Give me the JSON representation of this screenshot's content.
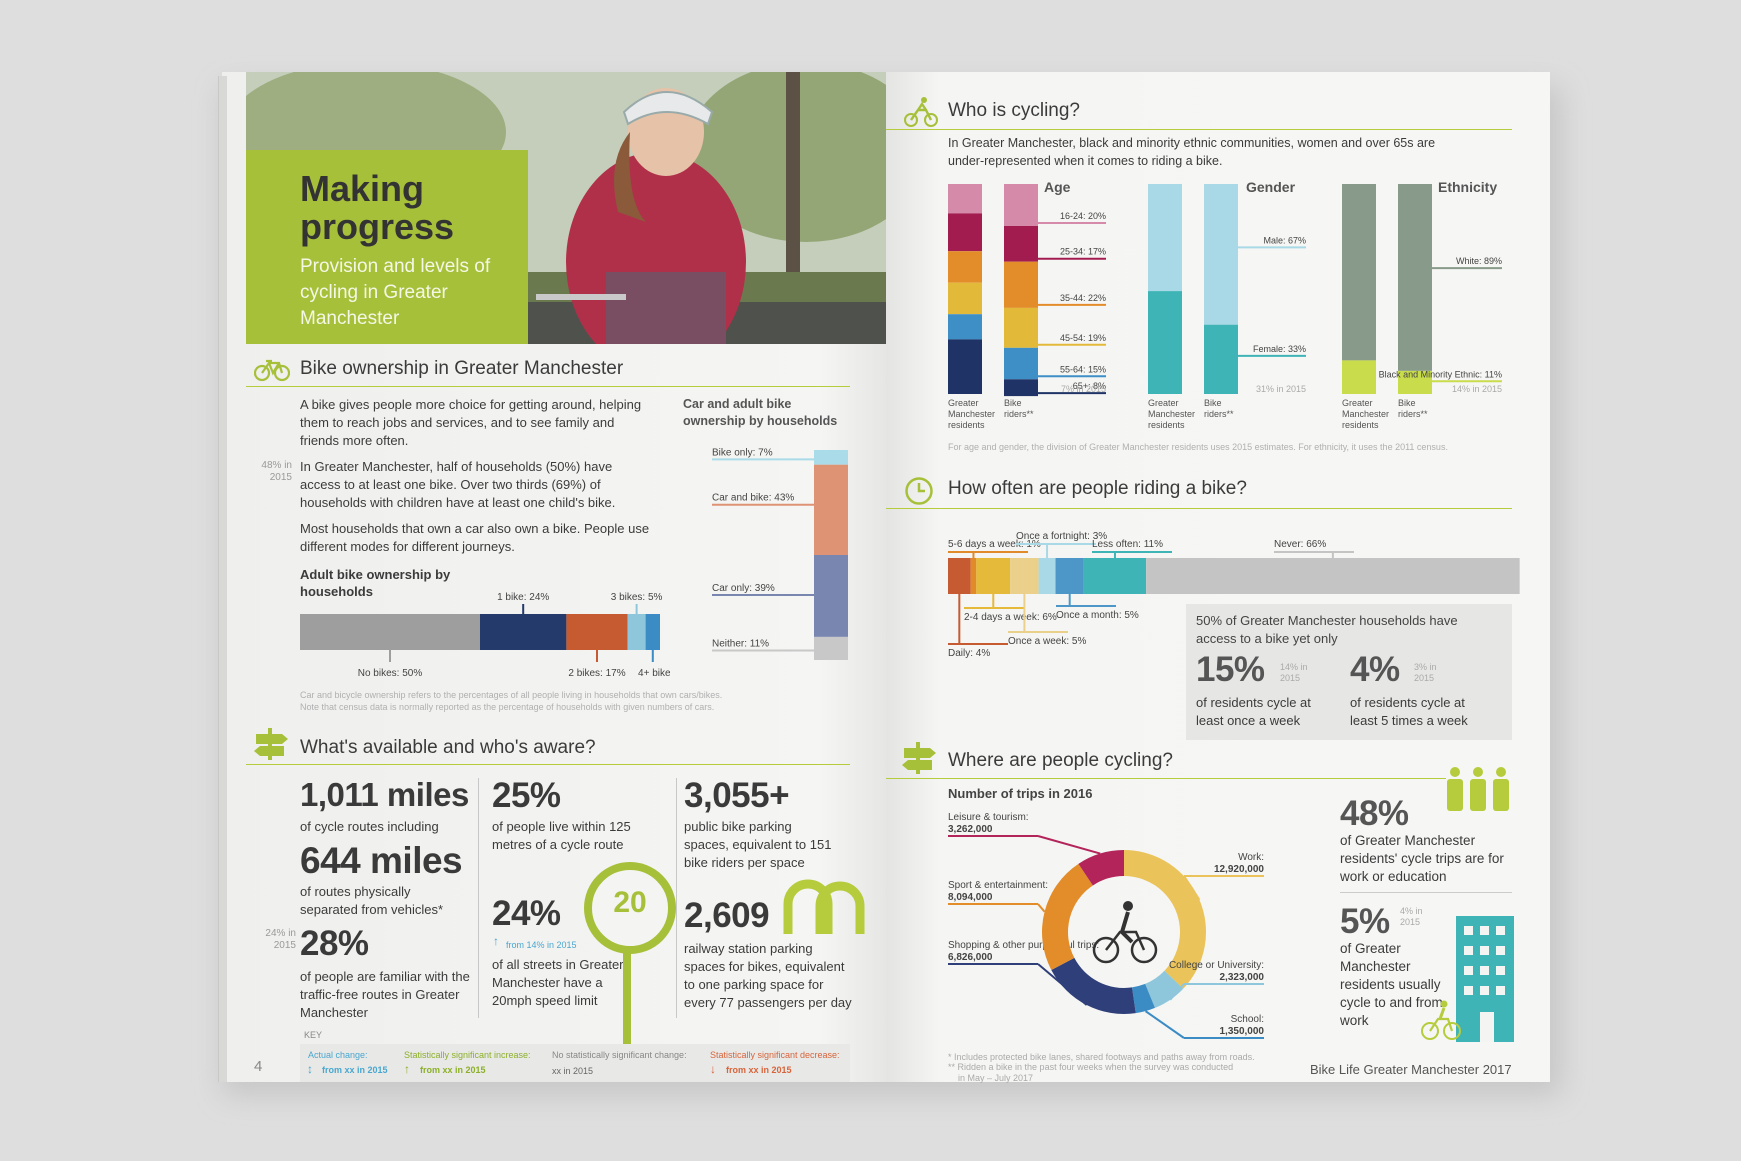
{
  "left": {
    "hero": {
      "title": "Making progress",
      "subtitle": "Provision and levels of cycling in Greater Manchester"
    },
    "ownership": {
      "heading": "Bike ownership in Greater Manchester",
      "p1": "A bike gives people more choice for getting around, helping them to reach jobs and services, and to see family and friends more often.",
      "p2_note": "48% in 2015",
      "p2": "In Greater Manchester, half of households (50%) have access to at least one bike. Over two thirds (69%) of households with children have at least one child's bike.",
      "p3": "Most households that own a car also own a bike. People use different modes for different journeys.",
      "adult_title": "Adult bike ownership by households",
      "car_title": "Car and adult bike ownership by households",
      "footnote1": "Car and bicycle ownership refers to the percentages of all people living in households that own cars/bikes.",
      "footnote2": "Note that census data is normally reported as the percentage of households with given numbers of cars."
    },
    "available": {
      "heading": "What's available and who's aware?",
      "s1_num": "1,011 miles",
      "s1_text": "of cycle routes including",
      "s2_num": "644 miles",
      "s2_text": "of routes physically separated from vehicles*",
      "s3_note": "24% in 2015",
      "s3_num": "28%",
      "s3_text": "of people are familiar with the traffic-free routes in Greater Manchester",
      "s4_num": "25%",
      "s4_text": "of people live within 125 metres of a cycle route",
      "s5_num": "24%",
      "s5_note": "from 14% in 2015",
      "s5_text": "of all streets in Greater Manchester have a 20mph speed limit",
      "sign": "20",
      "s6_num": "3,055+",
      "s6_text": "public bike parking spaces, equivalent to 151 bike riders per space",
      "s7_num": "2,609",
      "s7_text": "railway station parking spaces for bikes, equivalent to one parking space for every 77 passengers per day"
    },
    "key": {
      "title": "KEY",
      "k1a": "Actual change:",
      "k1b": "from xx in 2015",
      "k2a": "Statistically significant increase:",
      "k2b": "from xx in 2015",
      "k3a": "No statistically significant change:",
      "k3b": "xx in 2015",
      "k4a": "Statistically significant decrease:",
      "k4b": "from xx in 2015"
    },
    "page_number": "4"
  },
  "right": {
    "who": {
      "heading": "Who is cycling?",
      "intro": "In Greater Manchester, black and minority ethnic communities, women and over 65s are under-represented when it comes to riding a bike.",
      "age_title": "Age",
      "gender_title": "Gender",
      "eth_title": "Ethnicity",
      "col_residents": "Greater Manchester residents",
      "col_riders": "Bike riders**",
      "age_note": "7% in 2015",
      "gender_note": "31% in 2015",
      "eth_note": "14% in 2015",
      "footnote": "For age and gender, the division of Greater Manchester residents uses 2015 estimates. For ethnicity, it uses the 2011 census."
    },
    "often": {
      "heading": "How often are people riding a bike?",
      "box_line1": "50% of Greater Manchester households have access to a bike yet only",
      "stat1": "15%",
      "stat1_note": "14% in 2015",
      "stat1_text": "of residents cycle at least once a week",
      "stat2": "4%",
      "stat2_note": "3% in 2015",
      "stat2_text": "of residents cycle at least 5 times a week"
    },
    "where": {
      "heading": "Where are people cycling?",
      "chart_title": "Number of trips in 2016",
      "stat1": "48%",
      "stat1_text": "of Greater Manchester residents' cycle trips are for work or education",
      "stat2": "5%",
      "stat2_note": "4% in 2015",
      "stat2_text": "of Greater Manchester residents usually cycle to and from work"
    },
    "footnotes": {
      "f1": "* Includes protected bike lanes, shared footways and paths away from roads.",
      "f2": "** Ridden a bike in the past four weeks when the survey was conducted",
      "f3": "in May – July 2017"
    },
    "brand": "Bike Life Greater Manchester 2017"
  },
  "chart_data": [
    {
      "type": "bar",
      "title": "Adult bike ownership by households",
      "orientation": "horizontal-stacked",
      "categories": [
        "No bikes",
        "1 bike",
        "2 bikes",
        "3 bikes",
        "4+ bikes"
      ],
      "values": [
        50,
        24,
        17,
        5,
        4
      ],
      "labels": [
        "No bikes: 50%",
        "1 bike: 24%",
        "2 bikes: 17%",
        "3 bikes: 5%",
        "4+ bikes: 4%"
      ],
      "colors": [
        "#9e9e9e",
        "#243a6b",
        "#c65a30",
        "#8ec7dc",
        "#3b8bc4"
      ]
    },
    {
      "type": "bar",
      "title": "Car and adult bike ownership by households",
      "orientation": "vertical-stacked",
      "categories": [
        "Bike only",
        "Car and bike",
        "Car only",
        "Neither"
      ],
      "values": [
        7,
        43,
        39,
        11
      ],
      "labels": [
        "Bike only: 7%",
        "Car and bike: 43%",
        "Car only: 39%",
        "Neither: 11%"
      ],
      "colors": [
        "#a9dbe8",
        "#de9474",
        "#7986b0",
        "#c8c8c8"
      ]
    },
    {
      "type": "bar",
      "title": "Age",
      "orientation": "vertical-stacked",
      "categories": [
        "16-24",
        "25-34",
        "35-44",
        "45-54",
        "55-64",
        "65+"
      ],
      "labels": [
        "16-24: 20%",
        "25-34: 17%",
        "35-44: 22%",
        "45-54: 19%",
        "55-64: 15%",
        "65+: 8%"
      ],
      "series": [
        {
          "name": "Greater Manchester residents",
          "values": [
            14,
            18,
            15,
            15,
            12,
            26
          ]
        },
        {
          "name": "Bike riders**",
          "values": [
            20,
            17,
            22,
            19,
            15,
            8
          ]
        }
      ],
      "colors": [
        "#d48aa8",
        "#a31c4f",
        "#e38d2a",
        "#e3b93a",
        "#3f8fc7",
        "#1f3366"
      ]
    },
    {
      "type": "bar",
      "title": "Gender",
      "orientation": "vertical-stacked",
      "categories": [
        "Male",
        "Female"
      ],
      "labels": [
        "Male: 67%",
        "Female: 33%"
      ],
      "series": [
        {
          "name": "Greater Manchester residents",
          "values": [
            51,
            49
          ]
        },
        {
          "name": "Bike riders**",
          "values": [
            67,
            33
          ]
        }
      ],
      "colors": [
        "#a9d9e6",
        "#3fb4b6"
      ]
    },
    {
      "type": "bar",
      "title": "Ethnicity",
      "orientation": "vertical-stacked",
      "categories": [
        "White",
        "Black and Minority Ethnic"
      ],
      "labels": [
        "White: 89%",
        "Black and Minority Ethnic: 11%"
      ],
      "series": [
        {
          "name": "Greater Manchester residents",
          "values": [
            84,
            16
          ]
        },
        {
          "name": "Bike riders**",
          "values": [
            89,
            11
          ]
        }
      ],
      "colors": [
        "#889a8a",
        "#c8dc4c"
      ]
    },
    {
      "type": "bar",
      "title": "How often are people riding a bike?",
      "orientation": "horizontal-stacked",
      "categories": [
        "Daily",
        "5-6 days a week",
        "2-4 days a week",
        "Once a week",
        "Once a fortnight",
        "Once a month",
        "Less often",
        "Never"
      ],
      "values": [
        4,
        1,
        6,
        5,
        3,
        5,
        11,
        66
      ],
      "labels": [
        "Daily: 4%",
        "5-6 days a week: 1%",
        "2-4 days a week: 6%",
        "Once a week: 5%",
        "Once a fortnight: 3%",
        "Once a month: 5%",
        "Less often: 11%",
        "Never: 66%"
      ],
      "colors": [
        "#c65a30",
        "#e08a2a",
        "#e5b93a",
        "#ead08a",
        "#a9d9e6",
        "#4c97c8",
        "#3fb4b6",
        "#c4c4c4"
      ]
    },
    {
      "type": "pie",
      "title": "Number of trips in 2016",
      "categories": [
        "Work",
        "College or University",
        "School",
        "Shopping & other purposeful trips",
        "Sport & entertainment",
        "Leisure & tourism"
      ],
      "values": [
        12920000,
        2323000,
        1350000,
        6826000,
        8094000,
        3262000
      ],
      "labels": [
        "Work: 12,920,000",
        "College or University: 2,323,000",
        "School: 1,350,000",
        "Shopping & other purposeful trips: 6,826,000",
        "Sport & entertainment: 8,094,000",
        "Leisure & tourism: 3,262,000"
      ],
      "colors": [
        "#eac35a",
        "#8ec7dc",
        "#3b8bc4",
        "#2e3f7a",
        "#e38d2a",
        "#b3245a"
      ]
    }
  ]
}
